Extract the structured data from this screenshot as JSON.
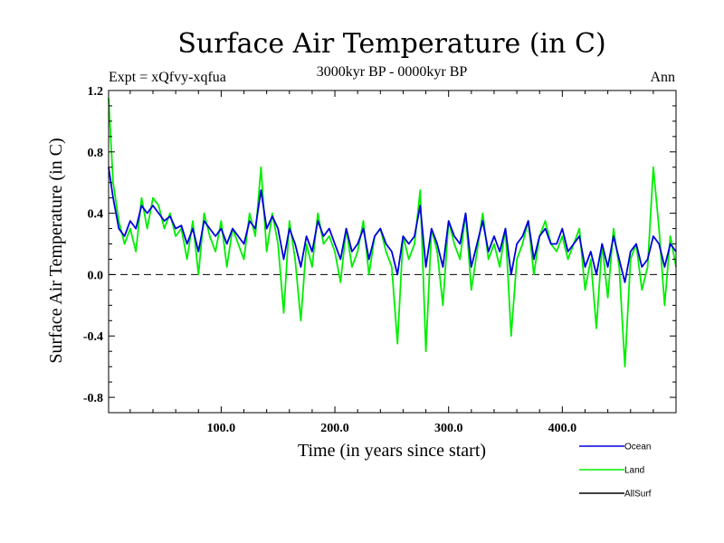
{
  "chart_data": {
    "type": "line",
    "title": "Surface Air Temperature (in C)",
    "experiment": "Expt = xQfvy-xqfua",
    "period": "3000kyr BP - 0000kyr BP",
    "season": "Ann",
    "xlabel": "Time (in years since start)",
    "ylabel": "Surface Air Temperature (in C)",
    "xlim": [
      1,
      500
    ],
    "ylim": [
      -0.9,
      1.2
    ],
    "x_ticks": [
      100,
      200,
      300,
      400
    ],
    "x_tick_labels": [
      "100.0",
      "200.0",
      "300.0",
      "400.0"
    ],
    "y_ticks": [
      -0.8,
      -0.4,
      0.0,
      0.4,
      0.8,
      1.2
    ],
    "y_tick_labels": [
      "-0.8",
      "-0.4",
      "0.0",
      "0.4",
      "0.8",
      "1.2"
    ],
    "reference_line": 0.0,
    "series": [
      {
        "name": "Land",
        "color": "#00ee00",
        "x": [
          1,
          5,
          10,
          15,
          20,
          25,
          30,
          35,
          40,
          45,
          50,
          55,
          60,
          65,
          70,
          75,
          80,
          85,
          90,
          95,
          100,
          105,
          110,
          115,
          120,
          125,
          130,
          135,
          140,
          145,
          150,
          155,
          160,
          165,
          170,
          175,
          180,
          185,
          190,
          195,
          200,
          205,
          210,
          215,
          220,
          225,
          230,
          235,
          240,
          245,
          250,
          255,
          260,
          265,
          270,
          275,
          280,
          285,
          290,
          295,
          300,
          305,
          310,
          315,
          320,
          325,
          330,
          335,
          340,
          345,
          350,
          355,
          360,
          365,
          370,
          375,
          380,
          385,
          390,
          395,
          400,
          405,
          410,
          415,
          420,
          425,
          430,
          435,
          440,
          445,
          450,
          455,
          460,
          465,
          470,
          475,
          480,
          485,
          490,
          495,
          500
        ],
        "values": [
          1.15,
          0.6,
          0.35,
          0.2,
          0.3,
          0.15,
          0.5,
          0.3,
          0.5,
          0.45,
          0.3,
          0.4,
          0.25,
          0.3,
          0.1,
          0.35,
          0.0,
          0.4,
          0.25,
          0.15,
          0.35,
          0.05,
          0.3,
          0.2,
          0.1,
          0.4,
          0.25,
          0.7,
          0.15,
          0.4,
          0.2,
          -0.25,
          0.35,
          0.1,
          -0.3,
          0.2,
          0.05,
          0.4,
          0.2,
          0.25,
          0.15,
          -0.05,
          0.3,
          0.05,
          0.15,
          0.35,
          0.0,
          0.25,
          0.3,
          0.15,
          0.05,
          -0.45,
          0.25,
          0.1,
          0.2,
          0.55,
          -0.5,
          0.3,
          0.15,
          -0.2,
          0.35,
          0.2,
          0.1,
          0.4,
          -0.1,
          0.15,
          0.4,
          0.1,
          0.2,
          0.05,
          0.3,
          -0.4,
          0.1,
          0.2,
          0.35,
          0.0,
          0.25,
          0.35,
          0.2,
          0.15,
          0.25,
          0.1,
          0.2,
          0.3,
          -0.1,
          0.1,
          -0.35,
          0.2,
          -0.15,
          0.3,
          0.05,
          -0.6,
          0.1,
          0.2,
          -0.1,
          0.05,
          0.7,
          0.3,
          -0.2,
          0.25,
          0.05
        ]
      },
      {
        "name": "Ocean",
        "color": "#0000dd",
        "x": [
          1,
          5,
          10,
          15,
          20,
          25,
          30,
          35,
          40,
          45,
          50,
          55,
          60,
          65,
          70,
          75,
          80,
          85,
          90,
          95,
          100,
          105,
          110,
          115,
          120,
          125,
          130,
          135,
          140,
          145,
          150,
          155,
          160,
          165,
          170,
          175,
          180,
          185,
          190,
          195,
          200,
          205,
          210,
          215,
          220,
          225,
          230,
          235,
          240,
          245,
          250,
          255,
          260,
          265,
          270,
          275,
          280,
          285,
          290,
          295,
          300,
          305,
          310,
          315,
          320,
          325,
          330,
          335,
          340,
          345,
          350,
          355,
          360,
          365,
          370,
          375,
          380,
          385,
          390,
          395,
          400,
          405,
          410,
          415,
          420,
          425,
          430,
          435,
          440,
          445,
          450,
          455,
          460,
          465,
          470,
          475,
          480,
          485,
          490,
          495,
          500
        ],
        "values": [
          0.7,
          0.5,
          0.3,
          0.25,
          0.35,
          0.3,
          0.45,
          0.4,
          0.45,
          0.4,
          0.35,
          0.38,
          0.3,
          0.32,
          0.2,
          0.3,
          0.15,
          0.35,
          0.3,
          0.25,
          0.3,
          0.2,
          0.3,
          0.25,
          0.2,
          0.35,
          0.3,
          0.55,
          0.3,
          0.38,
          0.3,
          0.1,
          0.3,
          0.2,
          0.05,
          0.25,
          0.15,
          0.35,
          0.25,
          0.3,
          0.2,
          0.1,
          0.3,
          0.15,
          0.2,
          0.3,
          0.1,
          0.25,
          0.3,
          0.2,
          0.15,
          0.0,
          0.25,
          0.2,
          0.25,
          0.45,
          0.05,
          0.3,
          0.2,
          0.05,
          0.35,
          0.25,
          0.2,
          0.4,
          0.05,
          0.2,
          0.35,
          0.15,
          0.25,
          0.15,
          0.3,
          0.0,
          0.2,
          0.25,
          0.35,
          0.1,
          0.25,
          0.3,
          0.2,
          0.2,
          0.3,
          0.15,
          0.2,
          0.25,
          0.05,
          0.15,
          0.0,
          0.2,
          0.05,
          0.25,
          0.1,
          -0.05,
          0.15,
          0.2,
          0.05,
          0.1,
          0.25,
          0.2,
          0.05,
          0.2,
          0.15
        ]
      },
      {
        "name": "AllSurf",
        "color": "#000000",
        "x": [],
        "values": []
      }
    ],
    "legend_order": [
      "Ocean",
      "Land",
      "AllSurf"
    ],
    "legend_placement": "bottom-right"
  }
}
